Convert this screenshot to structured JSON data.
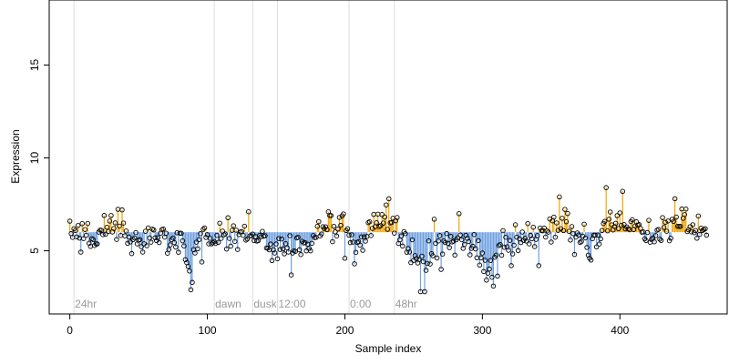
{
  "chart_data": {
    "type": "scatter",
    "title": "",
    "xlabel": "Sample index",
    "ylabel": "Expression",
    "xlim": [
      -15,
      478
    ],
    "ylim": [
      1.6,
      18.5
    ],
    "x_ticks": [
      0,
      100,
      200,
      300,
      400
    ],
    "y_ticks": [
      5,
      10,
      15
    ],
    "baseline": 6.0,
    "colors": {
      "above_baseline": "#f0a500",
      "below_baseline": "#6fa0e0",
      "point_edge": "#000000",
      "phase_line": "#dddddd",
      "phase_label": "#9a9a9a"
    },
    "phase_markers": [
      {
        "x": 3,
        "label": "24hr"
      },
      {
        "x": 105,
        "label": "dawn"
      },
      {
        "x": 133,
        "label": "dusk"
      },
      {
        "x": 151,
        "label": "12:00"
      },
      {
        "x": 203,
        "label": "0:00"
      },
      {
        "x": 236,
        "label": "48hr"
      }
    ],
    "control_points": [
      [
        0,
        6.2
      ],
      [
        10,
        5.7
      ],
      [
        20,
        5.6
      ],
      [
        25,
        6.2
      ],
      [
        30,
        6.4
      ],
      [
        38,
        6.0
      ],
      [
        45,
        5.5
      ],
      [
        52,
        5.2
      ],
      [
        58,
        5.8
      ],
      [
        66,
        5.9
      ],
      [
        75,
        5.6
      ],
      [
        82,
        5.7
      ],
      [
        86,
        4.2
      ],
      [
        88,
        3.5
      ],
      [
        90,
        5.0
      ],
      [
        95,
        5.8
      ],
      [
        105,
        5.7
      ],
      [
        115,
        5.8
      ],
      [
        125,
        6.0
      ],
      [
        132,
        5.8
      ],
      [
        140,
        5.5
      ],
      [
        150,
        5.2
      ],
      [
        160,
        5.1
      ],
      [
        170,
        5.4
      ],
      [
        180,
        5.9
      ],
      [
        190,
        6.3
      ],
      [
        200,
        6.5
      ],
      [
        205,
        5.0
      ],
      [
        212,
        5.4
      ],
      [
        220,
        6.4
      ],
      [
        230,
        6.9
      ],
      [
        237,
        6.6
      ],
      [
        242,
        5.4
      ],
      [
        248,
        5.0
      ],
      [
        254,
        4.1
      ],
      [
        260,
        4.5
      ],
      [
        266,
        5.2
      ],
      [
        275,
        5.6
      ],
      [
        285,
        5.5
      ],
      [
        295,
        5.3
      ],
      [
        302,
        4.1
      ],
      [
        306,
        4.0
      ],
      [
        310,
        4.6
      ],
      [
        320,
        5.3
      ],
      [
        330,
        5.6
      ],
      [
        340,
        5.7
      ],
      [
        350,
        6.0
      ],
      [
        360,
        6.3
      ],
      [
        370,
        6.0
      ],
      [
        378,
        5.5
      ],
      [
        385,
        6.0
      ],
      [
        395,
        6.6
      ],
      [
        405,
        6.8
      ],
      [
        415,
        6.1
      ],
      [
        425,
        5.9
      ],
      [
        435,
        6.0
      ],
      [
        445,
        6.6
      ],
      [
        455,
        6.2
      ],
      [
        463,
        6.1
      ]
    ],
    "amplitude": 0.4,
    "dip_events": [
      {
        "x": 42,
        "y": 5.4
      },
      {
        "x": 88,
        "y": 2.9
      },
      {
        "x": 89,
        "y": 3.3
      },
      {
        "x": 96,
        "y": 4.4
      },
      {
        "x": 161,
        "y": 3.7
      },
      {
        "x": 200,
        "y": 4.6
      },
      {
        "x": 207,
        "y": 4.3
      },
      {
        "x": 255,
        "y": 2.8
      },
      {
        "x": 258,
        "y": 2.8
      },
      {
        "x": 270,
        "y": 4.0
      },
      {
        "x": 308,
        "y": 3.1
      },
      {
        "x": 321,
        "y": 4.2
      },
      {
        "x": 341,
        "y": 4.2
      },
      {
        "x": 367,
        "y": 4.8
      },
      {
        "x": 378,
        "y": 4.6
      },
      {
        "x": 379,
        "y": 4.5
      }
    ],
    "peak_events": [
      {
        "x": 25,
        "y": 6.9
      },
      {
        "x": 38,
        "y": 7.2
      },
      {
        "x": 130,
        "y": 7.1
      },
      {
        "x": 188,
        "y": 7.1
      },
      {
        "x": 232,
        "y": 7.8
      },
      {
        "x": 265,
        "y": 6.7
      },
      {
        "x": 283,
        "y": 7.0
      },
      {
        "x": 356,
        "y": 7.9
      },
      {
        "x": 390,
        "y": 8.4
      },
      {
        "x": 402,
        "y": 8.2
      },
      {
        "x": 440,
        "y": 7.8
      }
    ],
    "n_points": 464
  }
}
